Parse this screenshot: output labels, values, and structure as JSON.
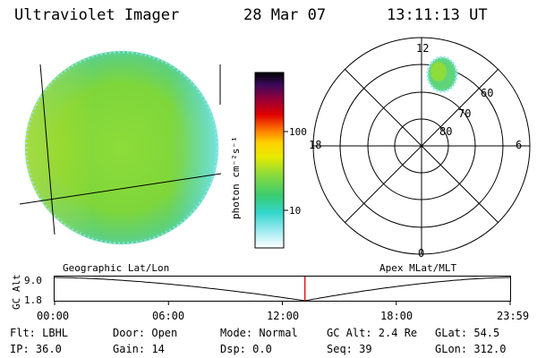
{
  "header": {
    "instrument": "Ultraviolet Imager",
    "date": "28 Mar 07",
    "time": "13:11:13 UT"
  },
  "colorbar": {
    "label": "photon cm⁻²s⁻¹",
    "ticks": [
      "100",
      "10"
    ]
  },
  "polar_plot": {
    "mlt_labels": {
      "top": "12",
      "left": "18",
      "right": "6",
      "bottom": "0"
    },
    "mlat_labels": [
      "60",
      "70",
      "80"
    ]
  },
  "timeline": {
    "left_label": "Geographic Lat/Lon",
    "right_label": "Apex MLat/MLT",
    "y_axis_label": "GC Alt",
    "y_ticks": [
      "9.0",
      "1.8"
    ],
    "x_ticks": [
      "00:00",
      "06:00",
      "12:00",
      "18:00",
      "23:59"
    ],
    "current_fraction": 0.5495
  },
  "footer": {
    "flt": "Flt: LBHL",
    "door": "Door: Open",
    "mode": "Mode: Normal",
    "gc_alt": "GC Alt: 2.4 Re",
    "glat": "GLat:  54.5",
    "ip": "IP: 36.0",
    "gain": "Gain: 14",
    "dsp": "Dsp:    0.0",
    "seq": "Seq: 39",
    "glon": "GLon: 312.0"
  },
  "colors": {
    "image_green": "#7ed63a",
    "marker": "#e00000"
  }
}
